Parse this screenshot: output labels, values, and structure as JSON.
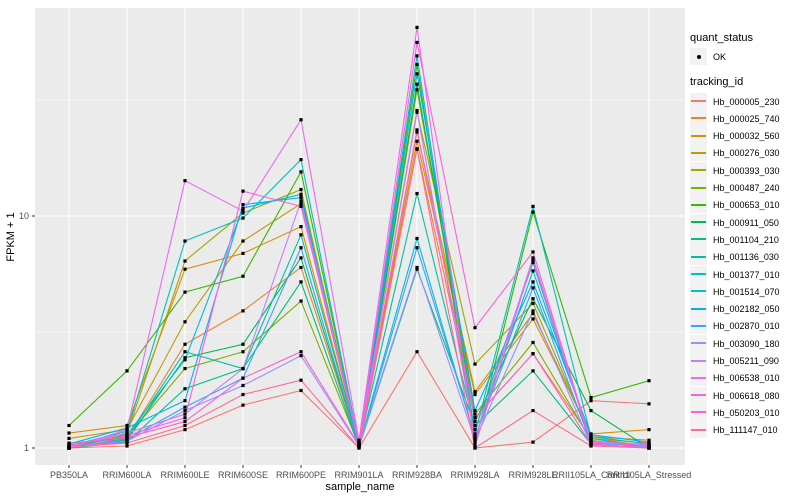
{
  "figure": {
    "x_axis_title": "sample_name",
    "y_axis_title": "FPKM + 1"
  },
  "legend": {
    "quant_status_title": "quant_status",
    "ok_label": "OK",
    "tracking_id_title": "tracking_id"
  },
  "colors": {
    "panel_background": "#EBEBEB",
    "gridline": "#FFFFFF",
    "tick_label": "#4D4D4D",
    "tick_mark": "#333333",
    "point": "#000000",
    "legend_key_background": "#F2F2F2"
  },
  "chart_data": {
    "type": "line",
    "title": "",
    "xlabel": "sample_name",
    "ylabel": "FPKM + 1",
    "y_scale": "log10",
    "y_tick_labels": [
      "1",
      "10"
    ],
    "y_ticks": [
      1,
      10
    ],
    "y_minor_ticks": [
      3.1623,
      31.623
    ],
    "ylim": [
      0.85,
      77
    ],
    "grid": "on",
    "legend_position": "right",
    "quant_status_value": "OK",
    "categories": [
      "PB350LA",
      "RRIM600LA",
      "RRIM600LE",
      "RRIM600SE",
      "RRIM600PE",
      "RRIM901LA",
      "RRIM928BA",
      "RRIM928LA",
      "RRIM928LE",
      "RRII105LA_Control",
      "RRII105LA_Stressed"
    ],
    "series": [
      {
        "name": "Hb_000005_230",
        "color": "#F8766D",
        "values": [
          1.0,
          1.02,
          1.2,
          1.53,
          1.77,
          1.0,
          2.6,
          1.0,
          1.06,
          1.6,
          1.55
        ]
      },
      {
        "name": "Hb_000025_740",
        "color": "#EA8331",
        "values": [
          1.05,
          1.1,
          2.8,
          3.9,
          6.0,
          1.02,
          19.5,
          1.35,
          2.55,
          1.1,
          1.05
        ]
      },
      {
        "name": "Hb_000032_560",
        "color": "#D89000",
        "values": [
          1.16,
          1.25,
          5.9,
          6.9,
          9.0,
          1.03,
          21.0,
          1.7,
          3.6,
          1.15,
          1.2
        ]
      },
      {
        "name": "Hb_000276_030",
        "color": "#C09B00",
        "values": [
          1.1,
          1.2,
          3.5,
          7.8,
          11.3,
          1.02,
          23.0,
          1.75,
          3.8,
          1.12,
          1.08
        ]
      },
      {
        "name": "Hb_000393_030",
        "color": "#A3A500",
        "values": [
          1.0,
          1.15,
          6.4,
          10.3,
          13.0,
          1.05,
          28.0,
          2.3,
          4.2,
          1.1,
          1.02
        ]
      },
      {
        "name": "Hb_000487_240",
        "color": "#7CAE00",
        "values": [
          1.02,
          1.12,
          2.2,
          2.6,
          4.3,
          1.02,
          35.0,
          1.4,
          2.85,
          1.08,
          1.0
        ]
      },
      {
        "name": "Hb_000653_010",
        "color": "#39B600",
        "values": [
          1.25,
          2.15,
          4.7,
          5.5,
          15.5,
          1.05,
          45.0,
          1.05,
          10.4,
          1.65,
          1.95
        ]
      },
      {
        "name": "Hb_000911_050",
        "color": "#00BB4E",
        "values": [
          1.0,
          1.08,
          2.45,
          2.8,
          6.6,
          1.02,
          37.0,
          1.3,
          4.4,
          1.45,
          1.0
        ]
      },
      {
        "name": "Hb_001104_210",
        "color": "#00BF7D",
        "values": [
          1.0,
          1.06,
          1.8,
          2.2,
          5.2,
          1.01,
          5.9,
          1.25,
          2.15,
          1.04,
          1.0
        ]
      },
      {
        "name": "Hb_001136_030",
        "color": "#00C1A3",
        "values": [
          1.0,
          1.1,
          2.6,
          2.2,
          8.3,
          1.03,
          12.5,
          1.2,
          6.3,
          1.06,
          1.02
        ]
      },
      {
        "name": "Hb_001377_010",
        "color": "#00BFC4",
        "values": [
          1.02,
          1.18,
          7.8,
          9.8,
          17.5,
          1.04,
          49.0,
          1.15,
          11.0,
          1.12,
          1.04
        ]
      },
      {
        "name": "Hb_001514_070",
        "color": "#00BBDA",
        "values": [
          1.0,
          1.14,
          2.4,
          10.8,
          12.4,
          1.02,
          8.0,
          1.1,
          5.8,
          1.1,
          1.0
        ]
      },
      {
        "name": "Hb_002182_050",
        "color": "#00B0F6",
        "values": [
          1.04,
          1.22,
          1.6,
          11.2,
          12.0,
          1.05,
          41.0,
          1.45,
          5.2,
          1.14,
          1.06
        ]
      },
      {
        "name": "Hb_002870_010",
        "color": "#35A2FF",
        "values": [
          1.0,
          1.09,
          1.5,
          2.0,
          7.3,
          1.01,
          7.3,
          1.12,
          4.9,
          1.05,
          1.02
        ]
      },
      {
        "name": "Hb_003090_180",
        "color": "#9590FF",
        "values": [
          1.01,
          1.07,
          1.45,
          1.86,
          2.5,
          1.02,
          6.0,
          1.08,
          3.9,
          1.03,
          1.01
        ]
      },
      {
        "name": "Hb_005211_090",
        "color": "#C77CFF",
        "values": [
          1.02,
          1.16,
          1.4,
          2.2,
          11.6,
          1.06,
          28.5,
          1.1,
          6.6,
          1.07,
          1.03
        ]
      },
      {
        "name": "Hb_006538_010",
        "color": "#E76BF3",
        "values": [
          1.0,
          1.2,
          14.2,
          10.5,
          26.0,
          1.08,
          65.0,
          1.02,
          6.5,
          1.05,
          1.04
        ]
      },
      {
        "name": "Hb_006618_080",
        "color": "#FA62DB",
        "values": [
          1.03,
          1.13,
          1.35,
          12.8,
          11.0,
          1.04,
          56.0,
          3.3,
          7.0,
          1.06,
          1.02
        ]
      },
      {
        "name": "Hb_050203_010",
        "color": "#FF61CC",
        "values": [
          1.0,
          1.11,
          1.3,
          2.0,
          2.6,
          1.03,
          23.5,
          1.35,
          2.55,
          1.04,
          1.0
        ]
      },
      {
        "name": "Hb_111147_010",
        "color": "#FF6A98",
        "values": [
          1.01,
          1.05,
          1.25,
          1.7,
          1.96,
          1.0,
          19.4,
          1.0,
          1.45,
          1.02,
          1.0
        ]
      }
    ]
  }
}
